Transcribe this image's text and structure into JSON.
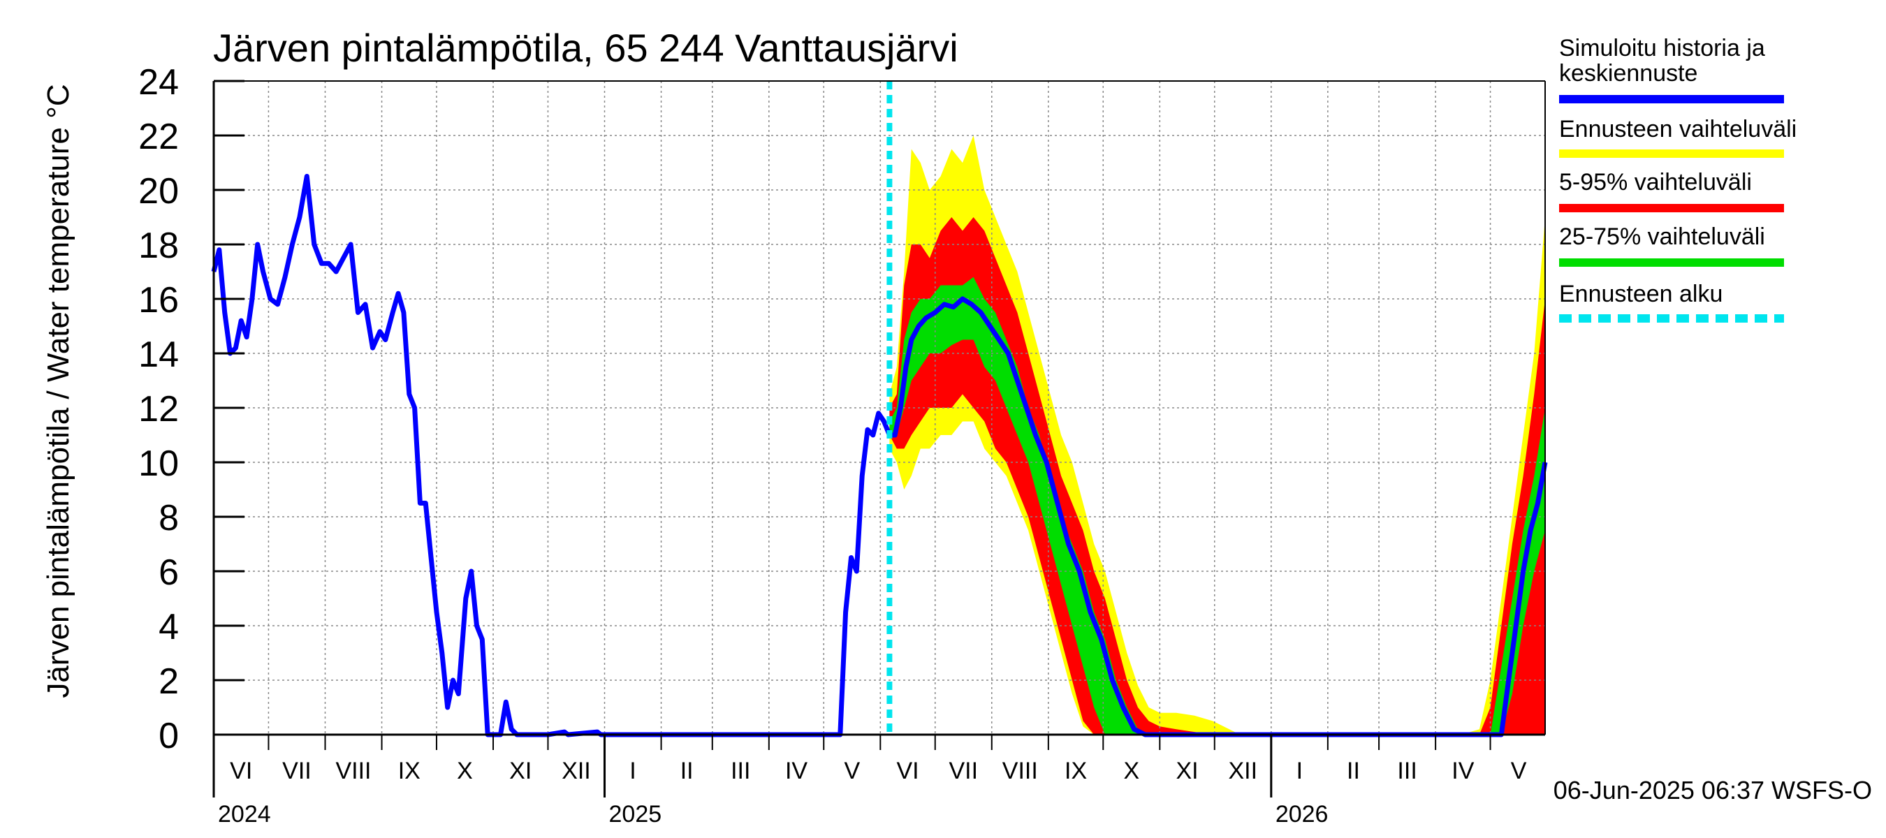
{
  "chart_data": {
    "type": "line",
    "title": "Järven pintalämpötila, 65 244 Vanttausjärvi",
    "ylabel": "Järven pintalämpötila / Water temperature °C",
    "ylim": [
      0,
      24
    ],
    "yticks": [
      0,
      2,
      4,
      6,
      8,
      10,
      12,
      14,
      16,
      18,
      20,
      22,
      24
    ],
    "xlim": [
      "2024-06-01",
      "2026-05-31"
    ],
    "month_labels": [
      {
        "label": "VI",
        "start": "2024-06-01",
        "end": "2024-07-01"
      },
      {
        "label": "VII",
        "start": "2024-07-01",
        "end": "2024-08-01"
      },
      {
        "label": "VIII",
        "start": "2024-08-01",
        "end": "2024-09-01"
      },
      {
        "label": "IX",
        "start": "2024-09-01",
        "end": "2024-10-01"
      },
      {
        "label": "X",
        "start": "2024-10-01",
        "end": "2024-11-01"
      },
      {
        "label": "XI",
        "start": "2024-11-01",
        "end": "2024-12-01"
      },
      {
        "label": "XII",
        "start": "2024-12-01",
        "end": "2025-01-01"
      },
      {
        "label": "I",
        "start": "2025-01-01",
        "end": "2025-02-01"
      },
      {
        "label": "II",
        "start": "2025-02-01",
        "end": "2025-03-01"
      },
      {
        "label": "III",
        "start": "2025-03-01",
        "end": "2025-04-01"
      },
      {
        "label": "IV",
        "start": "2025-04-01",
        "end": "2025-05-01"
      },
      {
        "label": "V",
        "start": "2025-05-01",
        "end": "2025-06-01"
      },
      {
        "label": "VI",
        "start": "2025-06-01",
        "end": "2025-07-01"
      },
      {
        "label": "VII",
        "start": "2025-07-01",
        "end": "2025-08-01"
      },
      {
        "label": "VIII",
        "start": "2025-08-01",
        "end": "2025-09-01"
      },
      {
        "label": "IX",
        "start": "2025-09-01",
        "end": "2025-10-01"
      },
      {
        "label": "X",
        "start": "2025-10-01",
        "end": "2025-11-01"
      },
      {
        "label": "XI",
        "start": "2025-11-01",
        "end": "2025-12-01"
      },
      {
        "label": "XII",
        "start": "2025-12-01",
        "end": "2026-01-01"
      },
      {
        "label": "I",
        "start": "2026-01-01",
        "end": "2026-02-01"
      },
      {
        "label": "II",
        "start": "2026-02-01",
        "end": "2026-03-01"
      },
      {
        "label": "III",
        "start": "2026-03-01",
        "end": "2026-04-01"
      },
      {
        "label": "IV",
        "start": "2026-04-01",
        "end": "2026-05-01"
      },
      {
        "label": "V",
        "start": "2026-05-01",
        "end": "2026-06-01"
      }
    ],
    "year_labels": [
      {
        "label": "2024",
        "date": "2024-06-01"
      },
      {
        "label": "2025",
        "date": "2025-01-01"
      },
      {
        "label": "2026",
        "date": "2026-01-01"
      }
    ],
    "forecast_start": "2025-06-06",
    "grid": true,
    "legend_position": "right",
    "legend": [
      {
        "label": "Simuloitu historia ja keskiennuste",
        "color": "#0000ff",
        "style": "solid"
      },
      {
        "label": "Ennusteen vaihteluväli",
        "color": "#ffff00",
        "style": "solid"
      },
      {
        "label": "5-95% vaihteluväli",
        "color": "#ff0000",
        "style": "solid"
      },
      {
        "label": "25-75% vaihteluväli",
        "color": "#00dd00",
        "style": "solid"
      },
      {
        "label": "Ennusteen alku",
        "color": "#00e5ee",
        "style": "dashed"
      }
    ],
    "series": [
      {
        "name": "Simuloitu historia ja keskiennuste",
        "role": "median",
        "color": "#0000ff",
        "points": [
          [
            "2024-06-01",
            17.0
          ],
          [
            "2024-06-04",
            17.8
          ],
          [
            "2024-06-07",
            15.5
          ],
          [
            "2024-06-10",
            14.0
          ],
          [
            "2024-06-13",
            14.2
          ],
          [
            "2024-06-16",
            15.2
          ],
          [
            "2024-06-19",
            14.6
          ],
          [
            "2024-06-22",
            16.0
          ],
          [
            "2024-06-25",
            18.0
          ],
          [
            "2024-06-28",
            17.0
          ],
          [
            "2024-07-02",
            16.0
          ],
          [
            "2024-07-06",
            15.8
          ],
          [
            "2024-07-10",
            16.8
          ],
          [
            "2024-07-14",
            18.0
          ],
          [
            "2024-07-18",
            19.0
          ],
          [
            "2024-07-22",
            20.5
          ],
          [
            "2024-07-26",
            18.0
          ],
          [
            "2024-07-30",
            17.3
          ],
          [
            "2024-08-03",
            17.3
          ],
          [
            "2024-08-07",
            17.0
          ],
          [
            "2024-08-11",
            17.5
          ],
          [
            "2024-08-15",
            18.0
          ],
          [
            "2024-08-19",
            15.5
          ],
          [
            "2024-08-23",
            15.8
          ],
          [
            "2024-08-27",
            14.2
          ],
          [
            "2024-08-31",
            14.8
          ],
          [
            "2024-09-03",
            14.5
          ],
          [
            "2024-09-07",
            15.5
          ],
          [
            "2024-09-10",
            16.2
          ],
          [
            "2024-09-13",
            15.5
          ],
          [
            "2024-09-16",
            12.5
          ],
          [
            "2024-09-19",
            12.0
          ],
          [
            "2024-09-22",
            8.5
          ],
          [
            "2024-09-25",
            8.5
          ],
          [
            "2024-09-28",
            6.5
          ],
          [
            "2024-10-01",
            4.5
          ],
          [
            "2024-10-04",
            3.0
          ],
          [
            "2024-10-07",
            1.0
          ],
          [
            "2024-10-10",
            2.0
          ],
          [
            "2024-10-13",
            1.5
          ],
          [
            "2024-10-17",
            5.0
          ],
          [
            "2024-10-20",
            6.0
          ],
          [
            "2024-10-23",
            4.0
          ],
          [
            "2024-10-26",
            3.5
          ],
          [
            "2024-10-29",
            0.0
          ],
          [
            "2024-11-01",
            0.0
          ],
          [
            "2024-11-05",
            0.0
          ],
          [
            "2024-11-08",
            1.2
          ],
          [
            "2024-11-11",
            0.2
          ],
          [
            "2024-11-14",
            0.0
          ],
          [
            "2024-12-01",
            0.0
          ],
          [
            "2024-12-10",
            0.1
          ],
          [
            "2024-12-12",
            0.0
          ],
          [
            "2024-12-28",
            0.1
          ],
          [
            "2024-12-30",
            0.0
          ],
          [
            "2025-01-15",
            0.0
          ],
          [
            "2025-02-15",
            0.0
          ],
          [
            "2025-03-15",
            0.0
          ],
          [
            "2025-04-15",
            0.0
          ],
          [
            "2025-05-10",
            0.0
          ],
          [
            "2025-05-13",
            4.5
          ],
          [
            "2025-05-16",
            6.5
          ],
          [
            "2025-05-19",
            6.0
          ],
          [
            "2025-05-22",
            9.5
          ],
          [
            "2025-05-25",
            11.2
          ],
          [
            "2025-05-28",
            11.0
          ],
          [
            "2025-05-31",
            11.8
          ],
          [
            "2025-06-03",
            11.5
          ],
          [
            "2025-06-06",
            11.0
          ],
          [
            "2025-06-09",
            11.0
          ],
          [
            "2025-06-12",
            12.0
          ],
          [
            "2025-06-15",
            13.5
          ],
          [
            "2025-06-18",
            14.5
          ],
          [
            "2025-06-22",
            15.0
          ],
          [
            "2025-06-26",
            15.3
          ],
          [
            "2025-07-01",
            15.5
          ],
          [
            "2025-07-06",
            15.8
          ],
          [
            "2025-07-11",
            15.7
          ],
          [
            "2025-07-16",
            16.0
          ],
          [
            "2025-07-21",
            15.8
          ],
          [
            "2025-07-26",
            15.5
          ],
          [
            "2025-07-31",
            15.0
          ],
          [
            "2025-08-05",
            14.5
          ],
          [
            "2025-08-10",
            14.0
          ],
          [
            "2025-08-15",
            13.0
          ],
          [
            "2025-08-20",
            12.0
          ],
          [
            "2025-08-25",
            11.0
          ],
          [
            "2025-08-31",
            10.0
          ],
          [
            "2025-09-06",
            8.5
          ],
          [
            "2025-09-12",
            7.0
          ],
          [
            "2025-09-18",
            6.0
          ],
          [
            "2025-09-24",
            4.5
          ],
          [
            "2025-09-30",
            3.5
          ],
          [
            "2025-10-06",
            2.0
          ],
          [
            "2025-10-12",
            1.0
          ],
          [
            "2025-10-18",
            0.2
          ],
          [
            "2025-10-24",
            0.0
          ],
          [
            "2025-11-15",
            0.0
          ],
          [
            "2025-12-15",
            0.0
          ],
          [
            "2026-01-15",
            0.0
          ],
          [
            "2026-02-15",
            0.0
          ],
          [
            "2026-03-15",
            0.0
          ],
          [
            "2026-04-15",
            0.0
          ],
          [
            "2026-05-01",
            0.0
          ],
          [
            "2026-05-07",
            0.0
          ],
          [
            "2026-05-11",
            2.0
          ],
          [
            "2026-05-15",
            4.0
          ],
          [
            "2026-05-19",
            6.0
          ],
          [
            "2026-05-23",
            7.5
          ],
          [
            "2026-05-27",
            8.5
          ],
          [
            "2026-05-31",
            10.0
          ]
        ]
      },
      {
        "name": "Ennusteen vaihteluväli",
        "role": "band",
        "color": "#ffff00",
        "x": [
          "2025-06-06",
          "2025-06-10",
          "2025-06-14",
          "2025-06-18",
          "2025-06-23",
          "2025-06-28",
          "2025-07-04",
          "2025-07-10",
          "2025-07-16",
          "2025-07-22",
          "2025-07-28",
          "2025-08-03",
          "2025-08-09",
          "2025-08-15",
          "2025-08-21",
          "2025-08-27",
          "2025-09-02",
          "2025-09-08",
          "2025-09-14",
          "2025-09-20",
          "2025-09-26",
          "2025-10-02",
          "2025-10-08",
          "2025-10-14",
          "2025-10-20",
          "2025-10-26",
          "2025-11-01",
          "2025-11-10",
          "2025-11-20",
          "2025-11-30",
          "2025-12-15",
          "2026-01-15",
          "2026-02-15",
          "2026-03-15",
          "2026-04-15",
          "2026-04-25",
          "2026-05-01",
          "2026-05-07",
          "2026-05-13",
          "2026-05-19",
          "2026-05-25",
          "2026-05-31"
        ],
        "upper": [
          12.5,
          13.5,
          17.0,
          21.5,
          21.0,
          20.0,
          20.5,
          21.5,
          21.0,
          22.0,
          20.0,
          19.0,
          18.0,
          17.0,
          15.5,
          14.0,
          12.5,
          11.0,
          10.0,
          8.5,
          7.0,
          6.0,
          4.5,
          3.0,
          1.8,
          1.0,
          0.8,
          0.8,
          0.7,
          0.5,
          0.0,
          0.0,
          0.0,
          0.0,
          0.0,
          0.2,
          2.0,
          5.0,
          8.0,
          11.0,
          14.0,
          19.0
        ],
        "lower": [
          10.5,
          10.0,
          9.0,
          9.5,
          10.5,
          10.5,
          11.0,
          11.0,
          11.5,
          11.5,
          10.5,
          10.0,
          9.5,
          8.5,
          7.5,
          6.0,
          4.5,
          3.0,
          1.5,
          0.3,
          0.0,
          0.0,
          0.0,
          0.0,
          0.0,
          0.0,
          0.0,
          0.0,
          0.0,
          0.0,
          0.0,
          0.0,
          0.0,
          0.0,
          0.0,
          0.0,
          0.0,
          0.0,
          0.0,
          0.0,
          0.0,
          0.0
        ]
      },
      {
        "name": "5-95% vaihteluväli",
        "role": "band",
        "color": "#ff0000",
        "x": [
          "2025-06-06",
          "2025-06-10",
          "2025-06-14",
          "2025-06-18",
          "2025-06-23",
          "2025-06-28",
          "2025-07-04",
          "2025-07-10",
          "2025-07-16",
          "2025-07-22",
          "2025-07-28",
          "2025-08-03",
          "2025-08-09",
          "2025-08-15",
          "2025-08-21",
          "2025-08-27",
          "2025-09-02",
          "2025-09-08",
          "2025-09-14",
          "2025-09-20",
          "2025-09-26",
          "2025-10-02",
          "2025-10-08",
          "2025-10-14",
          "2025-10-20",
          "2025-10-26",
          "2025-11-01",
          "2025-11-10",
          "2025-11-20",
          "2025-11-30",
          "2025-12-15",
          "2026-01-15",
          "2026-02-15",
          "2026-03-15",
          "2026-04-15",
          "2026-04-25",
          "2026-05-01",
          "2026-05-07",
          "2026-05-13",
          "2026-05-19",
          "2026-05-25",
          "2026-05-31"
        ],
        "upper": [
          12.0,
          12.5,
          16.5,
          18.0,
          18.0,
          17.5,
          18.5,
          19.0,
          18.5,
          19.0,
          18.5,
          17.5,
          16.5,
          15.5,
          14.0,
          12.5,
          11.0,
          9.5,
          8.5,
          7.5,
          6.0,
          5.0,
          3.5,
          2.0,
          1.0,
          0.5,
          0.3,
          0.2,
          0.1,
          0.0,
          0.0,
          0.0,
          0.0,
          0.0,
          0.0,
          0.0,
          1.0,
          4.0,
          7.0,
          9.5,
          12.5,
          16.0
        ],
        "lower": [
          11.0,
          10.5,
          10.5,
          11.0,
          11.5,
          12.0,
          12.0,
          12.0,
          12.5,
          12.0,
          11.5,
          10.5,
          10.0,
          9.0,
          8.0,
          6.5,
          5.0,
          3.5,
          2.0,
          0.5,
          0.0,
          0.0,
          0.0,
          0.0,
          0.0,
          0.0,
          0.0,
          0.0,
          0.0,
          0.0,
          0.0,
          0.0,
          0.0,
          0.0,
          0.0,
          0.0,
          0.0,
          0.0,
          0.0,
          0.0,
          0.0,
          0.0
        ]
      },
      {
        "name": "25-75% vaihteluväli",
        "role": "band",
        "color": "#00dd00",
        "x": [
          "2025-06-06",
          "2025-06-10",
          "2025-06-14",
          "2025-06-18",
          "2025-06-23",
          "2025-06-28",
          "2025-07-04",
          "2025-07-10",
          "2025-07-16",
          "2025-07-22",
          "2025-07-28",
          "2025-08-03",
          "2025-08-09",
          "2025-08-15",
          "2025-08-21",
          "2025-08-27",
          "2025-09-02",
          "2025-09-08",
          "2025-09-14",
          "2025-09-20",
          "2025-09-26",
          "2025-10-02",
          "2025-10-08",
          "2025-10-14",
          "2025-10-20",
          "2025-10-26",
          "2025-11-01",
          "2025-11-10",
          "2025-11-20",
          "2025-11-30",
          "2025-12-15",
          "2026-01-15",
          "2026-02-15",
          "2026-03-15",
          "2026-04-15",
          "2026-04-25",
          "2026-05-01",
          "2026-05-07",
          "2026-05-13",
          "2026-05-19",
          "2026-05-25",
          "2026-05-31"
        ],
        "upper": [
          11.5,
          12.0,
          14.5,
          15.5,
          16.0,
          16.0,
          16.5,
          16.5,
          16.5,
          16.8,
          16.0,
          15.5,
          14.5,
          13.5,
          12.0,
          11.0,
          9.5,
          8.0,
          7.0,
          6.0,
          4.5,
          3.5,
          2.0,
          1.0,
          0.2,
          0.0,
          0.0,
          0.0,
          0.0,
          0.0,
          0.0,
          0.0,
          0.0,
          0.0,
          0.0,
          0.0,
          0.0,
          2.5,
          5.0,
          7.5,
          9.5,
          12.0
        ],
        "lower": [
          11.0,
          11.0,
          12.0,
          13.0,
          13.5,
          14.0,
          14.0,
          14.3,
          14.5,
          14.5,
          13.5,
          13.0,
          12.0,
          11.0,
          10.0,
          8.5,
          7.0,
          5.5,
          4.0,
          2.5,
          1.0,
          0.0,
          0.0,
          0.0,
          0.0,
          0.0,
          0.0,
          0.0,
          0.0,
          0.0,
          0.0,
          0.0,
          0.0,
          0.0,
          0.0,
          0.0,
          0.0,
          0.0,
          1.5,
          4.0,
          6.0,
          7.5
        ]
      }
    ],
    "footer_timestamp": "06-Jun-2025 06:37 WSFS-O"
  }
}
